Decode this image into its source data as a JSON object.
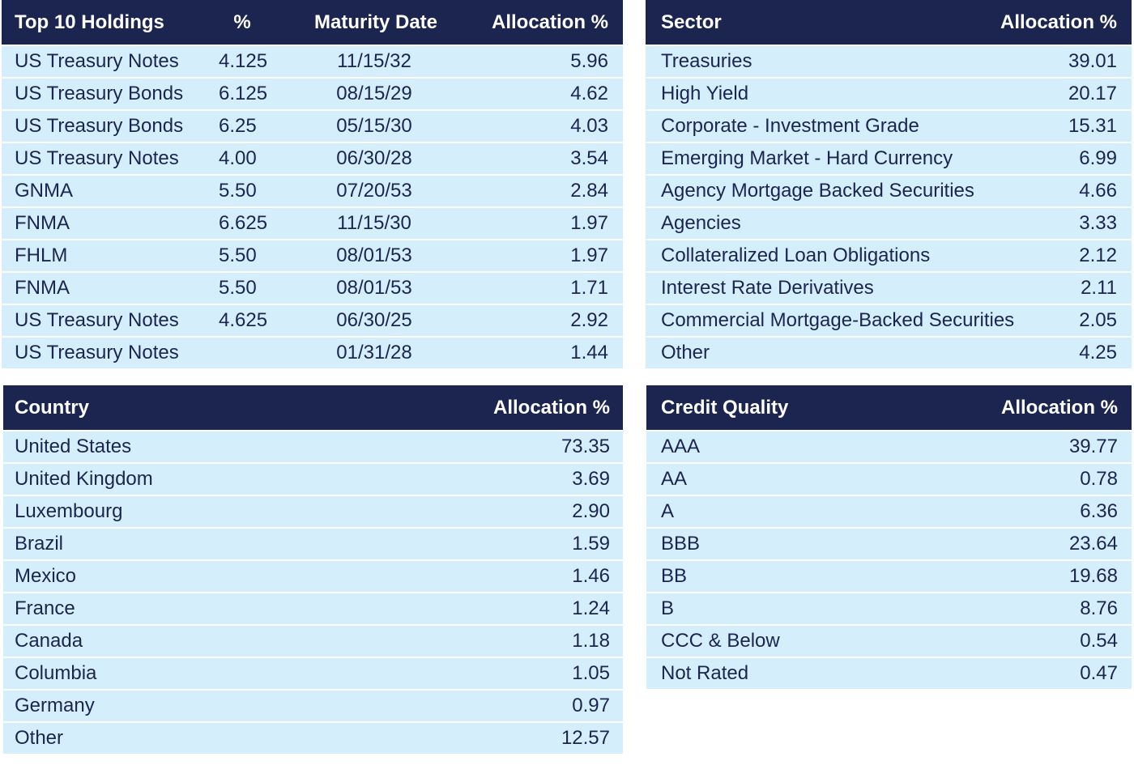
{
  "holdings": {
    "columns": [
      "Top 10 Holdings",
      "%",
      "Maturity Date",
      "Allocation %"
    ],
    "rows": [
      [
        "US Treasury Notes",
        "4.125",
        "11/15/32",
        "5.96"
      ],
      [
        "US Treasury Bonds",
        "6.125",
        "08/15/29",
        "4.62"
      ],
      [
        "US Treasury Bonds",
        "6.25",
        "05/15/30",
        "4.03"
      ],
      [
        "US Treasury Notes",
        "4.00",
        "06/30/28",
        "3.54"
      ],
      [
        "GNMA",
        "5.50",
        "07/20/53",
        "2.84"
      ],
      [
        "FNMA",
        "6.625",
        "11/15/30",
        "1.97"
      ],
      [
        "FHLM",
        "5.50",
        "08/01/53",
        "1.97"
      ],
      [
        "FNMA",
        "5.50",
        "08/01/53",
        "1.71"
      ],
      [
        "US Treasury Notes",
        "4.625",
        "06/30/25",
        "2.92"
      ],
      [
        "US Treasury Notes",
        null,
        "01/31/28",
        "1.44"
      ]
    ]
  },
  "sector": {
    "columns": [
      "Sector",
      "Allocation %"
    ],
    "rows": [
      [
        "Treasuries",
        "39.01"
      ],
      [
        "High Yield",
        "20.17"
      ],
      [
        "Corporate - Investment Grade",
        "15.31"
      ],
      [
        "Emerging Market - Hard Currency",
        "6.99"
      ],
      [
        "Agency Mortgage Backed Securities",
        "4.66"
      ],
      [
        "Agencies",
        "3.33"
      ],
      [
        "Collateralized Loan Obligations",
        "2.12"
      ],
      [
        "Interest Rate Derivatives",
        "2.11"
      ],
      [
        "Commercial Mortgage-Backed Securities",
        "2.05"
      ],
      [
        "Other",
        "4.25"
      ]
    ]
  },
  "country": {
    "columns": [
      "Country",
      "Allocation %"
    ],
    "rows": [
      [
        "United States",
        "73.35"
      ],
      [
        "United Kingdom",
        "3.69"
      ],
      [
        "Luxembourg",
        "2.90"
      ],
      [
        "Brazil",
        "1.59"
      ],
      [
        "Mexico",
        "1.46"
      ],
      [
        "France",
        "1.24"
      ],
      [
        "Canada",
        "1.18"
      ],
      [
        "Columbia",
        "1.05"
      ],
      [
        "Germany",
        "0.97"
      ],
      [
        "Other",
        "12.57"
      ]
    ]
  },
  "credit_quality": {
    "columns": [
      "Credit Quality",
      "Allocation %"
    ],
    "rows": [
      [
        "AAA",
        "39.77"
      ],
      [
        "AA",
        "0.78"
      ],
      [
        "A",
        "6.36"
      ],
      [
        "BBB",
        "23.64"
      ],
      [
        "BB",
        "19.68"
      ],
      [
        "B",
        "8.76"
      ],
      [
        "CCC & Below",
        "0.54"
      ],
      [
        "Not Rated",
        "0.47"
      ]
    ]
  }
}
